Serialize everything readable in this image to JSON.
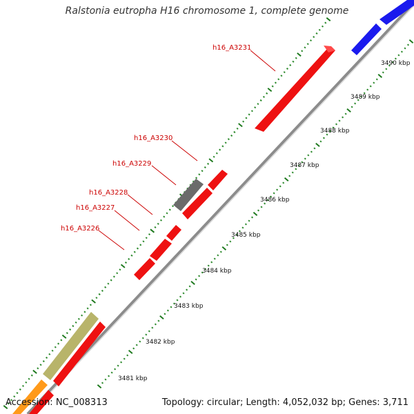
{
  "title": "Ralstonia eutropha H16 chromosome 1, complete genome",
  "accession": "Accession: NC_008313",
  "topology": "Topology: circular; Length: 4,052,032 bp; Genes: 3,711",
  "colors": {
    "backbone": "#8c8c8c",
    "tick_minor": "#2e8b2e",
    "tick_major": "#1f7a1f",
    "gene_red": "#ee1111",
    "gene_blue": "#1a1aee",
    "gene_gray": "#6b6b6b",
    "gene_olive": "#b8b46a",
    "gene_orange": "#ff9a1a",
    "label_red": "#cc0000"
  },
  "scale_labels": [
    {
      "kbp": 3481,
      "text": "3481 kbp"
    },
    {
      "kbp": 3482,
      "text": "3482 kbp"
    },
    {
      "kbp": 3483,
      "text": "3483 kbp"
    },
    {
      "kbp": 3484,
      "text": "3484 kbp"
    },
    {
      "kbp": 3485,
      "text": "3485 kbp"
    },
    {
      "kbp": 3486,
      "text": "3486 kbp"
    },
    {
      "kbp": 3487,
      "text": "3487 kbp"
    },
    {
      "kbp": 3488,
      "text": "3488 kbp"
    },
    {
      "kbp": 3489,
      "text": "3489 kbp"
    },
    {
      "kbp": 3490,
      "text": "3490 kbp"
    }
  ],
  "gene_labels": [
    {
      "text": "h16_A3231"
    },
    {
      "text": "h16_A3230"
    },
    {
      "text": "h16_A3229"
    },
    {
      "text": "h16_A3228"
    },
    {
      "text": "h16_A3227"
    },
    {
      "text": "h16_A3226"
    }
  ]
}
